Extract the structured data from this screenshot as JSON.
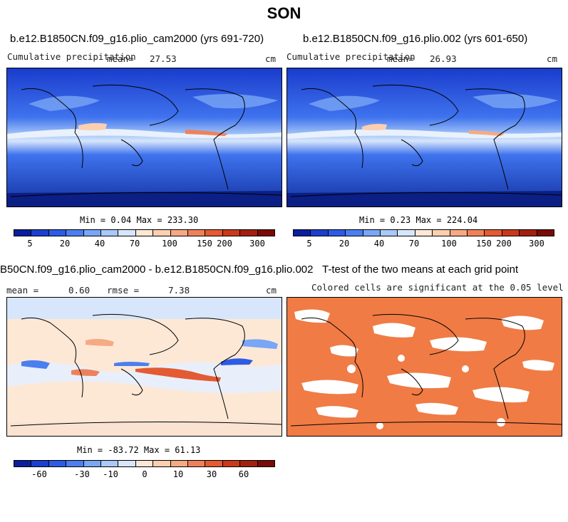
{
  "main_title": "SON",
  "panels": [
    {
      "title": "b.e12.B1850CN.f09_g16.plio_cam2000 (yrs 691-720)",
      "left_label": "Cumulative precipitation",
      "mean_label": "mean=",
      "mean_value": "27.53",
      "units": "cm",
      "minmax": "Min =   0.04 Max = 233.30"
    },
    {
      "title": "b.e12.B1850CN.f09_g16.plio.002 (yrs 601-650)",
      "left_label": "Cumulative precipitation",
      "mean_label": "mean=",
      "mean_value": "26.93",
      "units": "cm",
      "minmax": "Min =   0.23 Max = 224.04"
    },
    {
      "title": "B50CN.f09_g16.plio_cam2000 - b.e12.B1850CN.f09_g16.plio.002",
      "left_label": "mean =",
      "mean_value": "0.60",
      "rmse_label": "rmse =",
      "rmse_value": "7.38",
      "units": "cm",
      "minmax": "Min = -83.72 Max =  61.13"
    },
    {
      "title": "T-test of the two means at each grid point",
      "subtitle": "Colored cells are significant at the 0.05 level"
    }
  ],
  "colorbar_precip": {
    "ticks": [
      "5",
      "20",
      "40",
      "70",
      "100",
      "150",
      "200",
      "300"
    ],
    "colors": [
      "#0a1f9e",
      "#1c3fcf",
      "#2c5be6",
      "#4b7ff0",
      "#79a6f5",
      "#a9c9f8",
      "#d7e6fb",
      "#fde8d6",
      "#fbcfb0",
      "#f6aa84",
      "#ef815a",
      "#e35a33",
      "#c93a1c",
      "#a3200f",
      "#7a0a06"
    ]
  },
  "colorbar_diff": {
    "ticks": [
      "-60",
      "-30",
      "-10",
      "0",
      "10",
      "30",
      "60"
    ],
    "colors": [
      "#0a1f9e",
      "#1c3fcf",
      "#2c5be6",
      "#4b7ff0",
      "#79a6f5",
      "#a9c9f8",
      "#d7e6fb",
      "#fde8d6",
      "#fbcfb0",
      "#f6aa84",
      "#ef815a",
      "#e35a33",
      "#c93a1c",
      "#a3200f",
      "#7a0a06"
    ]
  },
  "ttest_color": "#f07b45"
}
